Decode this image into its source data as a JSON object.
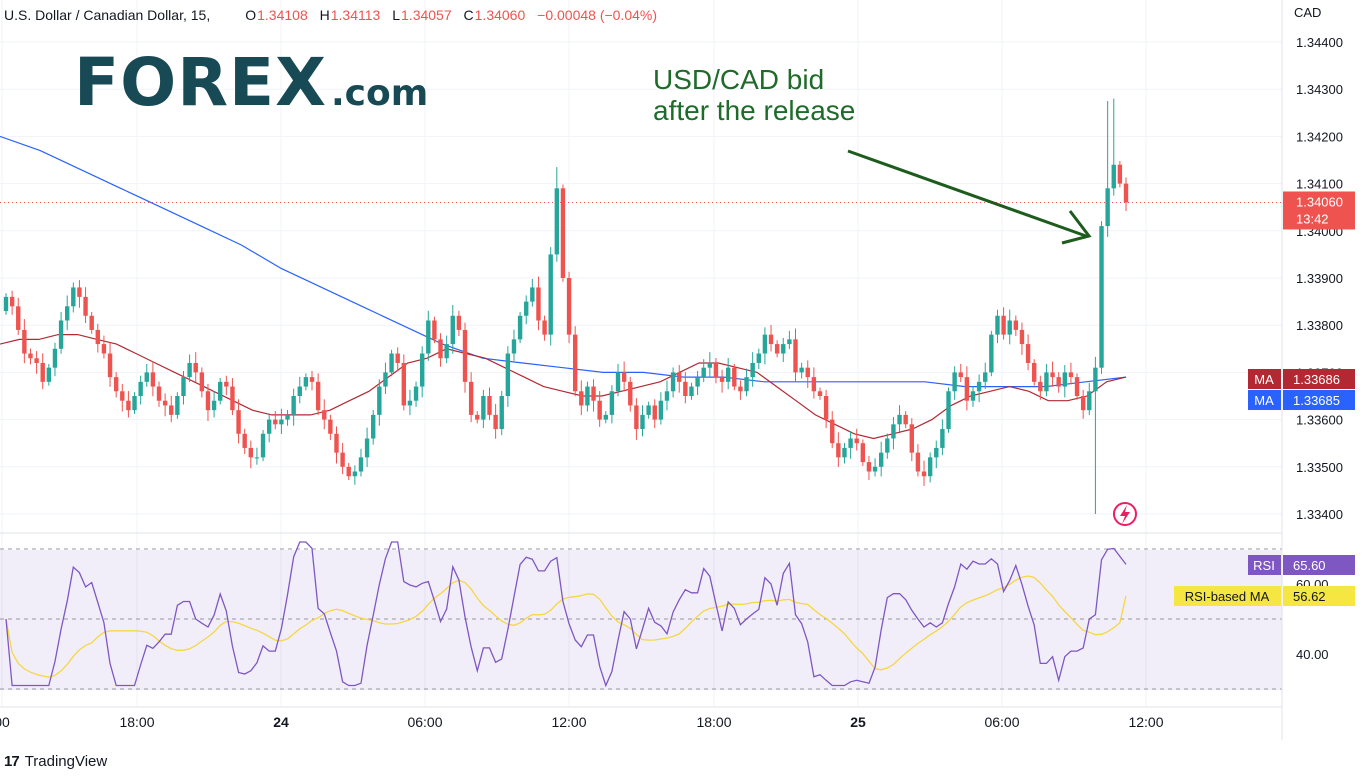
{
  "header": {
    "symbol_label": "U.S. Dollar / Canadian Dollar, 15,",
    "open_key": "O",
    "open": "1.34108",
    "high_key": "H",
    "high": "1.34113",
    "low_key": "L",
    "low": "1.34057",
    "close_key": "C",
    "close": "1.34060",
    "change": "−0.00048 (−0.04%)"
  },
  "logo": {
    "brand": "FOREX",
    "domain": ".com"
  },
  "annotation": {
    "line1": "USD/CAD bid",
    "line2": "after the release"
  },
  "footer": {
    "brand": "TradingView",
    "icon": "tradingview-icon"
  },
  "colors": {
    "up": "#26a69a",
    "down": "#ef5350",
    "ma_red": "#b22833",
    "ma_blue": "#2962ff",
    "rsi": "#7e57c2",
    "rsi_ma": "#f5d742",
    "arrow": "#1e5c1e"
  },
  "chart_data": [
    {
      "type": "candlestick",
      "title": "U.S. Dollar / Canadian Dollar, 15",
      "currency_label": "CAD",
      "y_ticks": [
        "1.34400",
        "1.34300",
        "1.34200",
        "1.34100",
        "1.34000",
        "1.33900",
        "1.33800",
        "1.33700",
        "1.33600",
        "1.33500",
        "1.33400"
      ],
      "ylim": [
        1.3336,
        1.3445
      ],
      "x_ticks": [
        "00",
        "18:00",
        "24",
        "06:00",
        "12:00",
        "18:00",
        "25",
        "06:00",
        "12:00"
      ],
      "last_price": {
        "value": 1.3406,
        "label": "1.34060",
        "countdown": "13:42"
      },
      "ma_labels": [
        {
          "name": "MA",
          "value": "1.33686",
          "color": "#b22833"
        },
        {
          "name": "MA",
          "value": "1.33685",
          "color": "#2962ff"
        }
      ],
      "closes": [
        1.3386,
        1.3384,
        1.3379,
        1.3374,
        1.3373,
        1.3372,
        1.3368,
        1.3371,
        1.3375,
        1.3381,
        1.3384,
        1.3388,
        1.3386,
        1.3382,
        1.3379,
        1.3376,
        1.3374,
        1.3369,
        1.3366,
        1.3364,
        1.3362,
        1.3365,
        1.3368,
        1.337,
        1.3367,
        1.3364,
        1.3363,
        1.3361,
        1.3365,
        1.3369,
        1.3372,
        1.337,
        1.3366,
        1.3362,
        1.3364,
        1.3368,
        1.3367,
        1.3362,
        1.3357,
        1.3354,
        1.3352,
        1.3352,
        1.3357,
        1.336,
        1.3359,
        1.336,
        1.3361,
        1.3365,
        1.3367,
        1.3369,
        1.3368,
        1.3362,
        1.336,
        1.3357,
        1.3353,
        1.335,
        1.3348,
        1.3349,
        1.3352,
        1.3356,
        1.3361,
        1.3367,
        1.337,
        1.3374,
        1.3372,
        1.3363,
        1.3364,
        1.3367,
        1.3374,
        1.3381,
        1.3377,
        1.3373,
        1.3376,
        1.3382,
        1.3379,
        1.3368,
        1.3361,
        1.336,
        1.3365,
        1.3361,
        1.3358,
        1.3365,
        1.3374,
        1.3377,
        1.3382,
        1.3385,
        1.3388,
        1.3381,
        1.3378,
        1.3395,
        1.3409,
        1.339,
        1.3378,
        1.3366,
        1.3363,
        1.3367,
        1.3364,
        1.336,
        1.3361,
        1.3366,
        1.337,
        1.3368,
        1.3363,
        1.3358,
        1.3361,
        1.3363,
        1.336,
        1.3364,
        1.3366,
        1.337,
        1.3368,
        1.3365,
        1.3367,
        1.3369,
        1.3371,
        1.3372,
        1.3369,
        1.3368,
        1.3371,
        1.3367,
        1.3366,
        1.3369,
        1.3372,
        1.3374,
        1.3378,
        1.3376,
        1.3374,
        1.3376,
        1.3377,
        1.337,
        1.3371,
        1.3369,
        1.3366,
        1.3365,
        1.336,
        1.3355,
        1.3352,
        1.3354,
        1.3356,
        1.3355,
        1.3351,
        1.3349,
        1.335,
        1.3353,
        1.3356,
        1.3359,
        1.3361,
        1.3359,
        1.3353,
        1.3349,
        1.3348,
        1.3352,
        1.3354,
        1.3358,
        1.3366,
        1.337,
        1.3369,
        1.3364,
        1.3366,
        1.3368,
        1.337,
        1.3378,
        1.3382,
        1.3378,
        1.3381,
        1.3379,
        1.3376,
        1.3372,
        1.3368,
        1.3366,
        1.337,
        1.3369,
        1.3367,
        1.337,
        1.3369,
        1.3365,
        1.3362,
        1.3366,
        1.3371,
        1.3401,
        1.3409,
        1.3414,
        1.341,
        1.3406
      ],
      "ma_red": [
        1.3376,
        1.3377,
        1.3377,
        1.3378,
        1.3378,
        1.3377,
        1.3376,
        1.3374,
        1.3372,
        1.337,
        1.3368,
        1.3366,
        1.3364,
        1.3362,
        1.3361,
        1.3361,
        1.3361,
        1.3362,
        1.3364,
        1.3366,
        1.3369,
        1.3372,
        1.3373,
        1.3375,
        1.3374,
        1.3373,
        1.3371,
        1.3369,
        1.3367,
        1.3366,
        1.3365,
        1.3365,
        1.3366,
        1.3367,
        1.3368,
        1.337,
        1.3372,
        1.3372,
        1.3371,
        1.337,
        1.3367,
        1.3364,
        1.3361,
        1.3359,
        1.3357,
        1.3356,
        1.3357,
        1.3358,
        1.336,
        1.3363,
        1.3365,
        1.3366,
        1.3367,
        1.3366,
        1.3364,
        1.3364,
        1.3365,
        1.3368,
        1.3369
      ],
      "ma_blue": [
        1.342,
        1.3417,
        1.3413,
        1.3409,
        1.3405,
        1.3401,
        1.3397,
        1.3392,
        1.3388,
        1.3384,
        1.338,
        1.3376,
        1.3373,
        1.3372,
        1.3371,
        1.337,
        1.337,
        1.3369,
        1.3369,
        1.3368,
        1.3368,
        1.3368,
        1.3368,
        1.3368,
        1.3367,
        1.3367,
        1.3367,
        1.3368,
        1.3369
      ],
      "rsi_panel": {
        "label": "RSI",
        "value": "65.60",
        "ma_label": "RSI-based MA",
        "ma_value": "56.62",
        "ticks": [
          "60.00",
          "40.00"
        ],
        "levels": [
          70,
          50,
          30
        ]
      }
    }
  ]
}
